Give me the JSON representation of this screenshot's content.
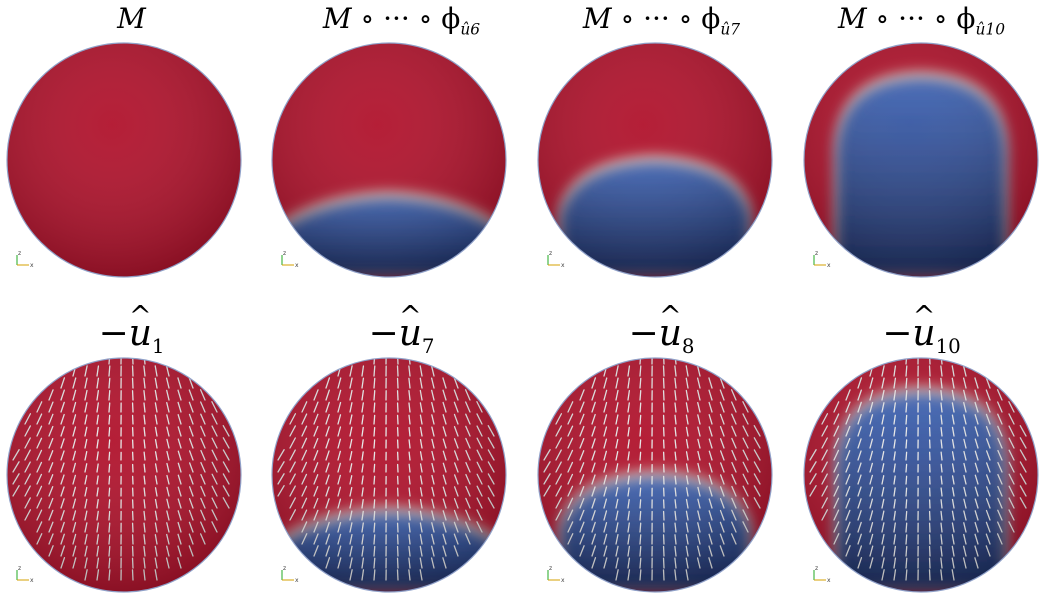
{
  "colors": {
    "red": "#b0102a",
    "red_dark": "#8a0a1f",
    "blue": "#3d63b5",
    "blue_dark": "#1a2a5e",
    "arrow": "#e6e6e6",
    "rim": "#8fa0c8"
  },
  "panels": [
    {
      "id": "m",
      "row": 0,
      "col": 0,
      "label_main": "M",
      "label_ops": "",
      "label_sub": "",
      "boundary": "none",
      "arrows": false
    },
    {
      "id": "m6",
      "row": 0,
      "col": 1,
      "label_main": "M",
      "label_ops": " ∘ ··· ∘ ϕ",
      "label_sub": "û6",
      "boundary": "low",
      "arrows": false
    },
    {
      "id": "m7",
      "row": 0,
      "col": 2,
      "label_main": "M",
      "label_ops": " ∘ ··· ∘ ϕ",
      "label_sub": "û7",
      "boundary": "mid",
      "arrows": false
    },
    {
      "id": "m10",
      "row": 0,
      "col": 3,
      "label_main": "M",
      "label_ops": " ∘ ··· ∘ ϕ",
      "label_sub": "û10",
      "boundary": "high",
      "arrows": false
    },
    {
      "id": "u1",
      "row": 1,
      "col": 0,
      "label_main": "−",
      "label_ops": "u",
      "label_sub": "1",
      "boundary": "none",
      "arrows": true
    },
    {
      "id": "u7",
      "row": 1,
      "col": 1,
      "label_main": "−",
      "label_ops": "u",
      "label_sub": "7",
      "boundary": "low",
      "arrows": true
    },
    {
      "id": "u8",
      "row": 1,
      "col": 2,
      "label_main": "−",
      "label_ops": "u",
      "label_sub": "8",
      "boundary": "mid",
      "arrows": true
    },
    {
      "id": "u10",
      "row": 1,
      "col": 3,
      "label_main": "−",
      "label_ops": "u",
      "label_sub": "10",
      "boundary": "high",
      "arrows": true
    }
  ],
  "axis_labels": {
    "z": "z",
    "x": "x"
  }
}
